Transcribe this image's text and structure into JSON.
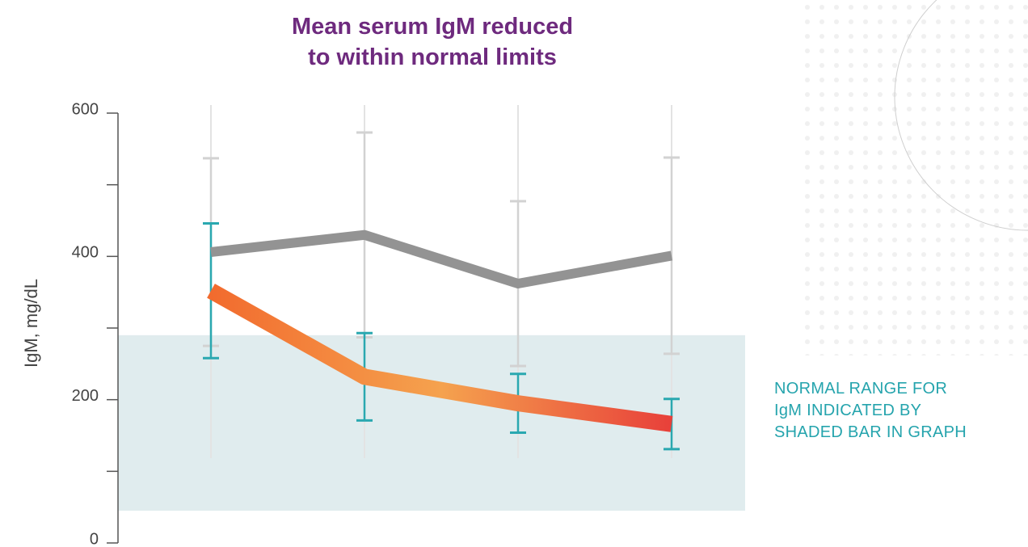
{
  "chart_data": {
    "type": "line",
    "title": [
      "Mean serum IgM reduced",
      "to within normal limits"
    ],
    "y_label": "IgM, mg/dL",
    "annotation": [
      "NORMAL RANGE FOR",
      "IgM INDICATED BY",
      "SHADED BAR IN GRAPH"
    ],
    "categories": [
      null,
      null,
      null,
      null
    ],
    "series": [
      {
        "color": "#939393",
        "error_color": "#d2d2d2",
        "values": [
          406,
          430,
          362,
          401
        ],
        "errors": [
          131,
          143,
          115,
          137
        ]
      },
      {
        "colors": [
          "#f26b2e",
          "#f5a24e",
          "#e8403a"
        ],
        "error_color": "#2aa8b0",
        "values": [
          352,
          232,
          195,
          166
        ],
        "errors": [
          94,
          61,
          41,
          35
        ]
      }
    ],
    "normal_range": [
      45,
      290
    ],
    "normal_range_color": "#e0ecee",
    "ylim": [
      0,
      600
    ],
    "yticks": [
      0,
      200,
      400,
      600
    ],
    "minor_yticks": [
      100,
      300,
      500
    ]
  }
}
